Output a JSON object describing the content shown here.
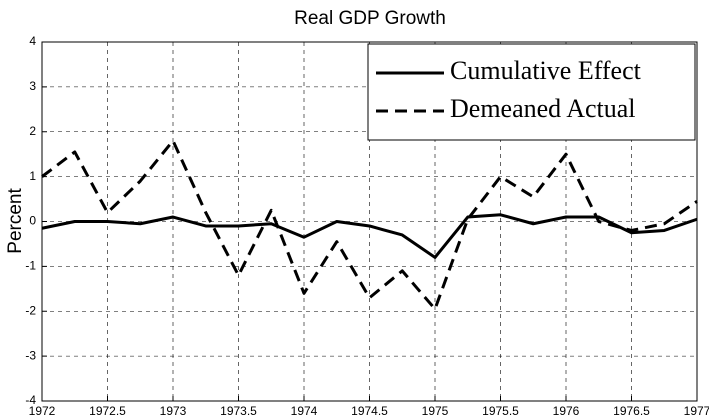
{
  "chart_data": {
    "type": "line",
    "title": "Real GDP Growth",
    "y_label": "Percent",
    "x": [
      1972,
      1972.25,
      1972.5,
      1972.75,
      1973,
      1973.25,
      1973.5,
      1973.75,
      1974,
      1974.25,
      1974.5,
      1974.75,
      1975,
      1975.25,
      1975.5,
      1975.75,
      1976,
      1976.25,
      1976.5,
      1976.75,
      1977
    ],
    "series": [
      {
        "name": "Cumulative Effect",
        "color": "#000000",
        "linestyle": "solid",
        "values": [
          -0.15,
          0.0,
          0.0,
          -0.05,
          0.1,
          -0.1,
          -0.1,
          -0.05,
          -0.35,
          0.0,
          -0.1,
          -0.3,
          -0.8,
          0.1,
          0.15,
          -0.05,
          0.1,
          0.1,
          -0.25,
          -0.2,
          0.05
        ]
      },
      {
        "name": "Demeaned Actual",
        "color": "#000000",
        "linestyle": "dashed",
        "values": [
          1.0,
          1.55,
          0.2,
          0.9,
          1.8,
          0.2,
          -1.2,
          0.25,
          -1.6,
          -0.45,
          -1.7,
          -1.1,
          -1.95,
          0.05,
          1.0,
          0.55,
          1.5,
          0.0,
          -0.2,
          -0.05,
          0.45
        ]
      }
    ],
    "xlim": [
      1972,
      1977
    ],
    "xticks": [
      1972,
      1972.5,
      1973,
      1973.5,
      1974,
      1974.5,
      1975,
      1975.5,
      1976,
      1976.5,
      1977
    ],
    "ylim": [
      -4,
      4
    ],
    "yticks": [
      -4,
      -3,
      -2,
      -1,
      0,
      1,
      2,
      3,
      4
    ],
    "grid": true,
    "legend": "top-right"
  }
}
